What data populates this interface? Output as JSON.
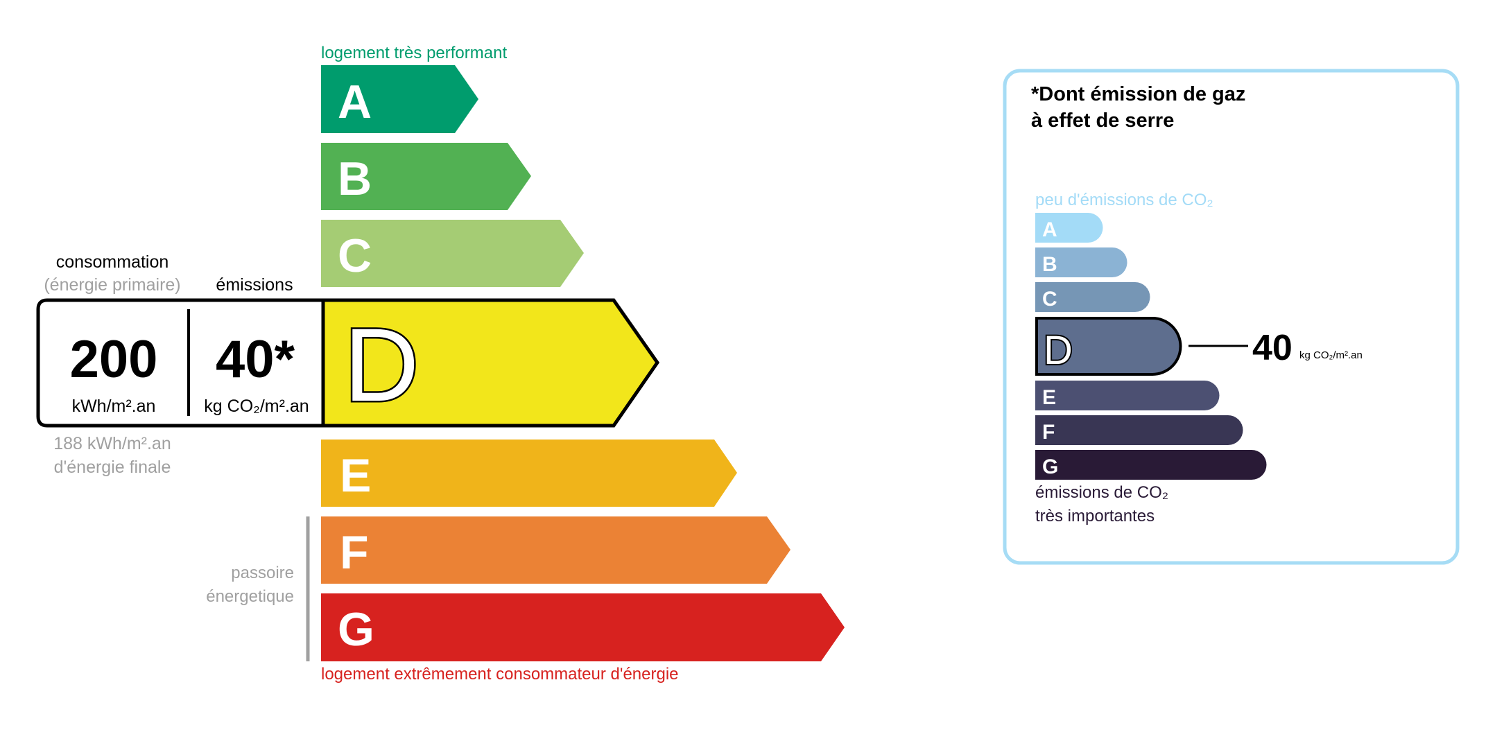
{
  "energy_label": {
    "top_caption": "logement très performant",
    "bottom_caption": "logement extrêmement consommateur d'énergie",
    "classes": [
      {
        "letter": "A",
        "color": "#009c6d"
      },
      {
        "letter": "B",
        "color": "#52b153"
      },
      {
        "letter": "C",
        "color": "#a5cc74"
      },
      {
        "letter": "D",
        "color": "#f2e61b"
      },
      {
        "letter": "E",
        "color": "#f0b41a"
      },
      {
        "letter": "F",
        "color": "#eb8235"
      },
      {
        "letter": "G",
        "color": "#d7221f"
      }
    ],
    "current_class": "D",
    "consumption_label": "consommation",
    "consumption_sublabel": "(énergie primaire)",
    "emissions_label": "émissions",
    "consumption_value": "200",
    "consumption_unit": "kWh/m².an",
    "emissions_value": "40*",
    "emissions_unit": "kg CO₂/m².an",
    "final_energy_value": "188 kWh/m².an",
    "final_energy_label": "d'énergie finale",
    "passoire_line1": "passoire",
    "passoire_line2": "énergetique"
  },
  "ges_label": {
    "title_line1": "*Dont émission de gaz",
    "title_line2": "à effet de serre",
    "top_caption": "peu d'émissions de CO₂",
    "bottom_caption_line1": "émissions de CO₂",
    "bottom_caption_line2": "très importantes",
    "classes": [
      {
        "letter": "A",
        "color": "#a3dbf7"
      },
      {
        "letter": "B",
        "color": "#8bb3d4"
      },
      {
        "letter": "C",
        "color": "#7696b5"
      },
      {
        "letter": "D",
        "color": "#5e6e8e"
      },
      {
        "letter": "E",
        "color": "#4c5072"
      },
      {
        "letter": "F",
        "color": "#393654"
      },
      {
        "letter": "G",
        "color": "#291a36"
      }
    ],
    "current_class": "D",
    "value": "40",
    "unit": "kg CO₂/m².an",
    "border_color": "#a6dcf5"
  }
}
